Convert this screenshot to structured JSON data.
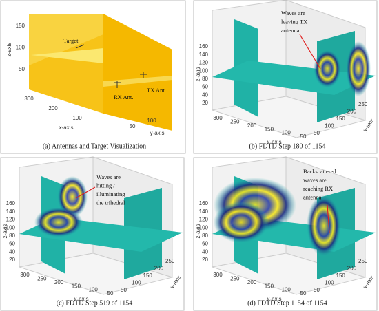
{
  "panels": [
    {
      "caption": "(a) Antennas and Target Visualization",
      "z_label": "z-axis",
      "x_label": "x-axis",
      "y_label": "y-axis",
      "z_ticks": [
        "150",
        "100",
        "50"
      ],
      "x_ticks": [
        "300",
        "200",
        "100"
      ],
      "y_ticks": [
        "50",
        "100"
      ],
      "annotations": [
        [
          "Target"
        ],
        [
          "RX Ant."
        ],
        [
          "TX Ant."
        ]
      ]
    },
    {
      "caption": "(b) FDTD Step 180 of 1154",
      "z_label": "z-axis",
      "x_label": "x-axis",
      "y_label": "y-axis",
      "z_ticks": [
        "160",
        "140",
        "120",
        "100",
        "80",
        "60",
        "40",
        "20"
      ],
      "x_ticks": [
        "300",
        "250",
        "200",
        "150",
        "100",
        "50"
      ],
      "y_ticks": [
        "50",
        "100",
        "150",
        "200",
        "250"
      ],
      "annotations": [
        [
          "Waves are",
          "leaving TX",
          "antenna"
        ]
      ]
    },
    {
      "caption": "(c) FDTD Step 519 of 1154",
      "z_label": "z-axis",
      "x_label": "x-axis",
      "y_label": "y-axis",
      "z_ticks": [
        "160",
        "140",
        "120",
        "100",
        "80",
        "60",
        "40",
        "20"
      ],
      "x_ticks": [
        "300",
        "250",
        "200",
        "150",
        "100",
        "50"
      ],
      "y_ticks": [
        "50",
        "100",
        "150",
        "200",
        "250"
      ],
      "annotations": [
        [
          "Waves are",
          "hitting /",
          "illuminating",
          "the trihedral"
        ]
      ]
    },
    {
      "caption": "(d) FDTD Step 1154 of  1154",
      "z_label": "z-axis",
      "x_label": "x-axis",
      "y_label": "y-axis",
      "z_ticks": [
        "160",
        "140",
        "120",
        "100",
        "80",
        "60",
        "40",
        "20"
      ],
      "x_ticks": [
        "300",
        "250",
        "200",
        "150",
        "100",
        "50"
      ],
      "y_ticks": [
        "50",
        "100",
        "150",
        "200",
        "250"
      ],
      "annotations": [
        [
          "Backscattered",
          "waves are",
          "reaching RX",
          "antenna"
        ]
      ]
    }
  ]
}
